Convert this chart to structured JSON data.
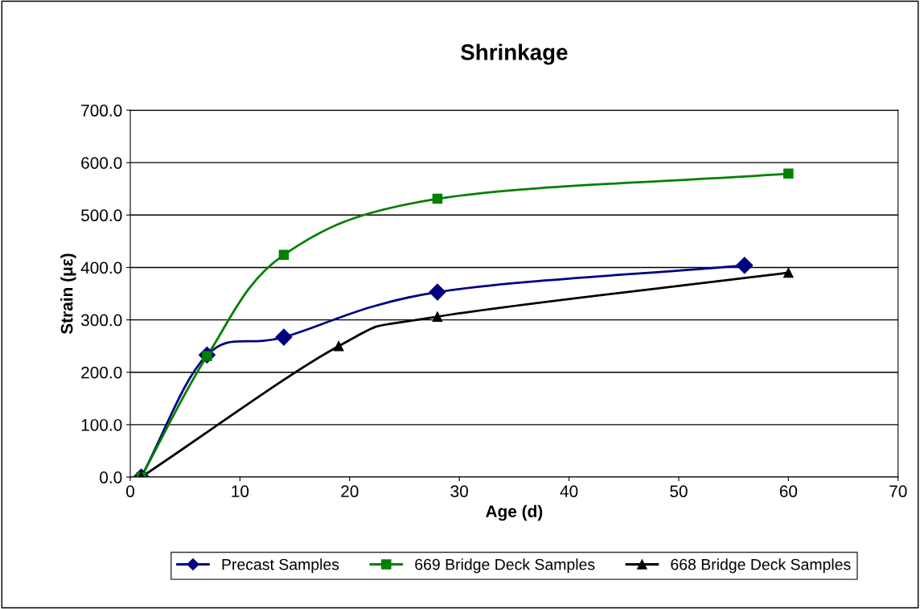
{
  "chart_data": {
    "type": "line",
    "title": "Shrinkage",
    "xlabel": "Age (d)",
    "ylabel": "Strain (με)",
    "xlim": [
      0,
      70
    ],
    "xticks": [
      0,
      10,
      20,
      30,
      40,
      50,
      60,
      70
    ],
    "ylim": [
      0,
      700
    ],
    "yticks": [
      {
        "value": 0,
        "label": "0.0"
      },
      {
        "value": 100,
        "label": "100.0"
      },
      {
        "value": 200,
        "label": "200.0"
      },
      {
        "value": 300,
        "label": "300.0"
      },
      {
        "value": 400,
        "label": "400.0"
      },
      {
        "value": 500,
        "label": "500.0"
      },
      {
        "value": 600,
        "label": "600.0"
      },
      {
        "value": 700,
        "label": "700.0"
      }
    ],
    "grid": "y",
    "legend": "bottom",
    "series": [
      {
        "name": "Precast Samples",
        "color": "#000080",
        "marker": "diamond",
        "x": [
          1,
          7,
          14,
          28,
          56
        ],
        "values": [
          0,
          233,
          267,
          353,
          404
        ]
      },
      {
        "name": "669 Bridge Deck Samples",
        "color": "#008000",
        "marker": "square",
        "x": [
          1,
          7,
          14,
          28,
          60
        ],
        "values": [
          0,
          231,
          424,
          531,
          579
        ]
      },
      {
        "name": "668 Bridge Deck Samples",
        "color": "#000000",
        "marker": "triangle",
        "x": [
          1,
          19,
          28,
          60
        ],
        "values": [
          0,
          250,
          306,
          390
        ]
      }
    ]
  }
}
